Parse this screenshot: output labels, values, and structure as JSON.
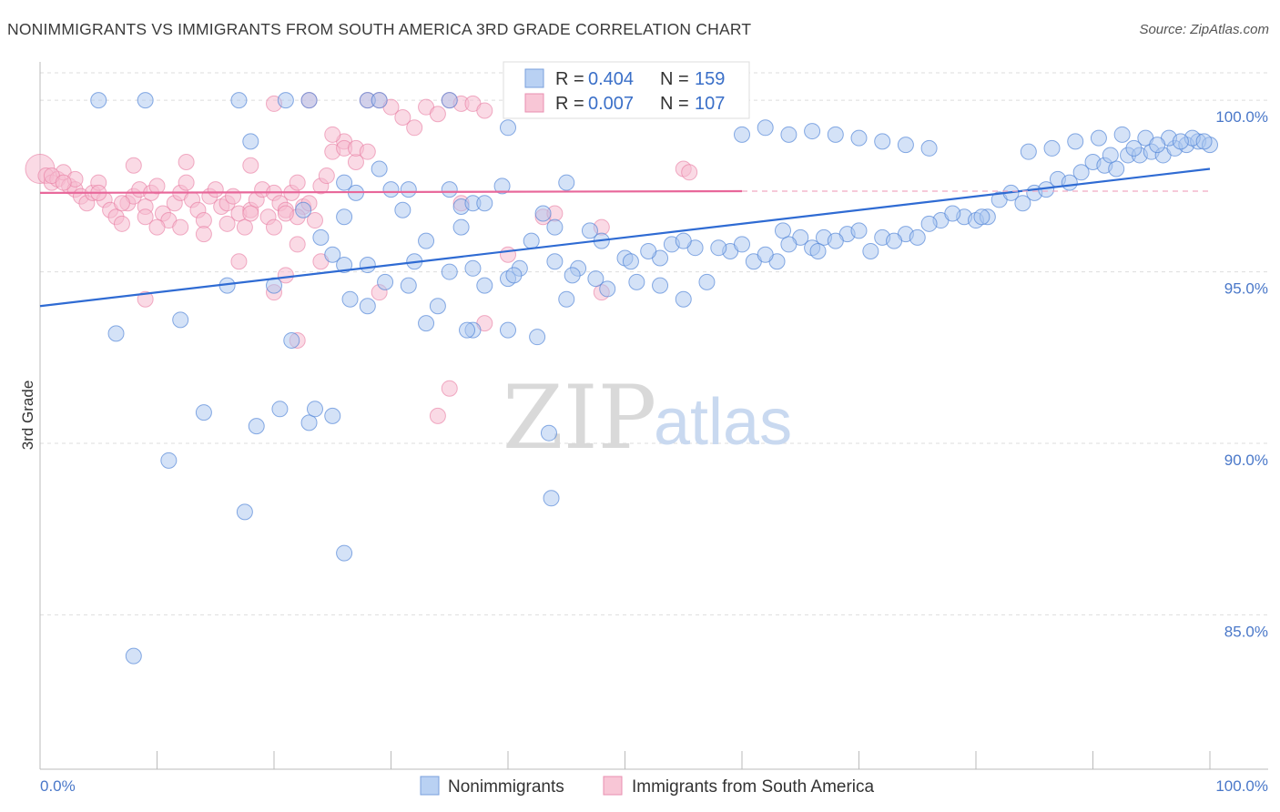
{
  "title": "NONIMMIGRANTS VS IMMIGRANTS FROM SOUTH AMERICA 3RD GRADE CORRELATION CHART",
  "source": "Source: ZipAtlas.com",
  "watermark": {
    "zip": "ZIP",
    "atlas": "atlas"
  },
  "colors": {
    "blue": "#4a7fd6",
    "blue_fill": "#aac6f0",
    "pink": "#e87aa0",
    "pink_fill": "#f6bcd0",
    "grid": "#dddddd",
    "tick_text": "#4a78c9"
  },
  "legend": {
    "r_label": "R =",
    "n_label": "N =",
    "blue": {
      "r": "0.404",
      "n": "159"
    },
    "pink": {
      "r": "0.007",
      "n": "107"
    }
  },
  "chart_data": {
    "type": "scatter",
    "title": "NONIMMIGRANTS VS IMMIGRANTS FROM SOUTH AMERICA 3RD GRADE CORRELATION CHART",
    "xlabel": "",
    "ylabel": "3rd Grade",
    "xlim": [
      0,
      100
    ],
    "ylim": [
      80.5,
      100.8
    ],
    "x_tick_labels": [
      "0.0%",
      "100.0%"
    ],
    "y_ticks": [
      85,
      90,
      95,
      100
    ],
    "y_tick_labels": [
      "85.0%",
      "90.0%",
      "95.0%",
      "100.0%"
    ],
    "grid": "horizontal dashed",
    "legend_position": "top-center",
    "series": [
      {
        "name": "Nonimmigrants",
        "color": "#4a7fd6",
        "r": 0.404,
        "n": 159,
        "trend": {
          "x": [
            0,
            100
          ],
          "y": [
            94.0,
            98.0
          ]
        },
        "points": [
          [
            5,
            100
          ],
          [
            9,
            100
          ],
          [
            17,
            100
          ],
          [
            21,
            100
          ],
          [
            23,
            100
          ],
          [
            28,
            100
          ],
          [
            29,
            100
          ],
          [
            35,
            100
          ],
          [
            40,
            99.2
          ],
          [
            18,
            98.8
          ],
          [
            29,
            98
          ],
          [
            30,
            97.4
          ],
          [
            31.5,
            97.4
          ],
          [
            27,
            97.3
          ],
          [
            35,
            97.4
          ],
          [
            39.5,
            97.5
          ],
          [
            45,
            97.6
          ],
          [
            26,
            97.6
          ],
          [
            22.5,
            96.8
          ],
          [
            24,
            96.0
          ],
          [
            26,
            96.6
          ],
          [
            31,
            96.8
          ],
          [
            36,
            96.9
          ],
          [
            37,
            97.0
          ],
          [
            38,
            97.0
          ],
          [
            43,
            96.7
          ],
          [
            44,
            96.3
          ],
          [
            47,
            96.2
          ],
          [
            33,
            95.9
          ],
          [
            36,
            96.3
          ],
          [
            42,
            95.9
          ],
          [
            25,
            95.5
          ],
          [
            26,
            95.2
          ],
          [
            28,
            95.2
          ],
          [
            32,
            95.3
          ],
          [
            35,
            95.0
          ],
          [
            37,
            95.1
          ],
          [
            41,
            95.1
          ],
          [
            44,
            95.3
          ],
          [
            46,
            95.1
          ],
          [
            48,
            95.9
          ],
          [
            50,
            95.4
          ],
          [
            53,
            95.4
          ],
          [
            56,
            95.7
          ],
          [
            59,
            95.6
          ],
          [
            61,
            95.3
          ],
          [
            63,
            95.3
          ],
          [
            38,
            94.6
          ],
          [
            40,
            94.8
          ],
          [
            40.5,
            94.9
          ],
          [
            45.5,
            94.9
          ],
          [
            47.5,
            94.8
          ],
          [
            50.5,
            95.3
          ],
          [
            52,
            95.6
          ],
          [
            54,
            95.8
          ],
          [
            55,
            95.9
          ],
          [
            58,
            95.7
          ],
          [
            60,
            95.8
          ],
          [
            63.5,
            96.2
          ],
          [
            65,
            96.0
          ],
          [
            66,
            95.7
          ],
          [
            64,
            95.8
          ],
          [
            67,
            96.0
          ],
          [
            69,
            96.1
          ],
          [
            72,
            96.0
          ],
          [
            74,
            96.1
          ],
          [
            71,
            95.6
          ],
          [
            73,
            95.9
          ],
          [
            75,
            96.0
          ],
          [
            77,
            96.5
          ],
          [
            79,
            96.6
          ],
          [
            80,
            96.5
          ],
          [
            81,
            96.6
          ],
          [
            78,
            96.7
          ],
          [
            82,
            97.1
          ],
          [
            83,
            97.3
          ],
          [
            85,
            97.3
          ],
          [
            86,
            97.4
          ],
          [
            87,
            97.7
          ],
          [
            88,
            97.6
          ],
          [
            89,
            97.9
          ],
          [
            90,
            98.2
          ],
          [
            91,
            98.1
          ],
          [
            92,
            98.0
          ],
          [
            93,
            98.4
          ],
          [
            94,
            98.4
          ],
          [
            95,
            98.5
          ],
          [
            96,
            98.4
          ],
          [
            97,
            98.6
          ],
          [
            98,
            98.7
          ],
          [
            99,
            98.8
          ],
          [
            100,
            98.7
          ],
          [
            84,
            97.0
          ],
          [
            80.5,
            96.6
          ],
          [
            76,
            96.4
          ],
          [
            70,
            96.2
          ],
          [
            68,
            95.9
          ],
          [
            66.5,
            95.6
          ],
          [
            62,
            95.5
          ],
          [
            57,
            94.7
          ],
          [
            55,
            94.2
          ],
          [
            53,
            94.6
          ],
          [
            51,
            94.7
          ],
          [
            48.5,
            94.5
          ],
          [
            45,
            94.2
          ],
          [
            40,
            93.3
          ],
          [
            37,
            93.3
          ],
          [
            36.5,
            93.3
          ],
          [
            42.5,
            93.1
          ],
          [
            33,
            93.5
          ],
          [
            28,
            94.0
          ],
          [
            26.5,
            94.2
          ],
          [
            34,
            94.0
          ],
          [
            20,
            94.6
          ],
          [
            16,
            94.6
          ],
          [
            12,
            93.6
          ],
          [
            6.5,
            93.2
          ],
          [
            21.5,
            93.0
          ],
          [
            29.5,
            94.7
          ],
          [
            31.5,
            94.6
          ],
          [
            11,
            89.5
          ],
          [
            17.5,
            88.0
          ],
          [
            18.5,
            90.5
          ],
          [
            23,
            90.6
          ],
          [
            25,
            90.8
          ],
          [
            26,
            86.8
          ],
          [
            43.5,
            90.3
          ],
          [
            43.7,
            88.4
          ],
          [
            8,
            83.8
          ],
          [
            14,
            90.9
          ],
          [
            20.5,
            91.0
          ],
          [
            23.5,
            91.0
          ],
          [
            60,
            99.0
          ],
          [
            62,
            99.2
          ],
          [
            64,
            99.0
          ],
          [
            66,
            99.1
          ],
          [
            68,
            99.0
          ],
          [
            70,
            98.9
          ],
          [
            72,
            98.8
          ],
          [
            74,
            98.7
          ],
          [
            76,
            98.6
          ],
          [
            84.5,
            98.5
          ],
          [
            86.5,
            98.6
          ],
          [
            88.5,
            98.8
          ],
          [
            90.5,
            98.9
          ],
          [
            92.5,
            99.0
          ],
          [
            94.5,
            98.9
          ],
          [
            96.5,
            98.9
          ],
          [
            98.5,
            98.9
          ],
          [
            99.5,
            98.8
          ],
          [
            97.5,
            98.8
          ],
          [
            95.5,
            98.7
          ],
          [
            93.5,
            98.6
          ],
          [
            91.5,
            98.4
          ]
        ]
      },
      {
        "name": "Immigrants from South America",
        "color": "#e87aa0",
        "r": 0.007,
        "n": 107,
        "trend": {
          "x": [
            0,
            60
          ],
          "y": [
            97.3,
            97.35
          ]
        },
        "trend_dashed": {
          "x": [
            60,
            100
          ],
          "y": [
            97.35,
            97.35
          ]
        },
        "points": [
          [
            0,
            98
          ],
          [
            0.5,
            97.8
          ],
          [
            1,
            97.6
          ],
          [
            1.5,
            97.7
          ],
          [
            2,
            97.9
          ],
          [
            2.5,
            97.5
          ],
          [
            3,
            97.4
          ],
          [
            3.5,
            97.2
          ],
          [
            4,
            97.0
          ],
          [
            4.5,
            97.3
          ],
          [
            5,
            97.6
          ],
          [
            5.5,
            97.1
          ],
          [
            6,
            96.8
          ],
          [
            6.5,
            96.6
          ],
          [
            7,
            96.4
          ],
          [
            7.5,
            97.0
          ],
          [
            8,
            97.2
          ],
          [
            8.5,
            97.4
          ],
          [
            9,
            96.9
          ],
          [
            9.5,
            97.3
          ],
          [
            10,
            97.5
          ],
          [
            10.5,
            96.7
          ],
          [
            11,
            96.5
          ],
          [
            11.5,
            97.0
          ],
          [
            12,
            97.3
          ],
          [
            12.5,
            97.6
          ],
          [
            13,
            97.1
          ],
          [
            13.5,
            96.8
          ],
          [
            14,
            96.5
          ],
          [
            14.5,
            97.2
          ],
          [
            15,
            97.4
          ],
          [
            15.5,
            96.9
          ],
          [
            16,
            97.0
          ],
          [
            16.5,
            97.2
          ],
          [
            17,
            96.7
          ],
          [
            17.5,
            96.3
          ],
          [
            18,
            96.8
          ],
          [
            18.5,
            97.1
          ],
          [
            19,
            97.4
          ],
          [
            19.5,
            96.6
          ],
          [
            20,
            97.3
          ],
          [
            20.5,
            97.0
          ],
          [
            21,
            96.8
          ],
          [
            21.5,
            97.3
          ],
          [
            22,
            97.6
          ],
          [
            22.5,
            96.9
          ],
          [
            23,
            97.0
          ],
          [
            23.5,
            96.5
          ],
          [
            24,
            97.5
          ],
          [
            24.5,
            97.8
          ],
          [
            25,
            98.5
          ],
          [
            26,
            98.8
          ],
          [
            27,
            98.2
          ],
          [
            28,
            100
          ],
          [
            29,
            100
          ],
          [
            30,
            99.8
          ],
          [
            31,
            99.5
          ],
          [
            32,
            99.2
          ],
          [
            33,
            99.8
          ],
          [
            34,
            99.6
          ],
          [
            35,
            100
          ],
          [
            36,
            99.9
          ],
          [
            37,
            99.9
          ],
          [
            38,
            99.7
          ],
          [
            20,
            99.9
          ],
          [
            23,
            100
          ],
          [
            25,
            99.0
          ],
          [
            26,
            98.6
          ],
          [
            27,
            98.6
          ],
          [
            18,
            98.1
          ],
          [
            12.5,
            98.2
          ],
          [
            8,
            98.1
          ],
          [
            3,
            97.7
          ],
          [
            1,
            97.8
          ],
          [
            2,
            97.6
          ],
          [
            5,
            97.3
          ],
          [
            7,
            97.0
          ],
          [
            9,
            96.6
          ],
          [
            10,
            96.3
          ],
          [
            12,
            96.3
          ],
          [
            14,
            96.1
          ],
          [
            16,
            96.4
          ],
          [
            18,
            96.7
          ],
          [
            20,
            96.3
          ],
          [
            22,
            96.6
          ],
          [
            21,
            96.7
          ],
          [
            22,
            95.8
          ],
          [
            17,
            95.3
          ],
          [
            24,
            95.3
          ],
          [
            21,
            94.9
          ],
          [
            20,
            94.4
          ],
          [
            29,
            94.4
          ],
          [
            9,
            94.2
          ],
          [
            22,
            93.0
          ],
          [
            38,
            93.5
          ],
          [
            35,
            91.6
          ],
          [
            34,
            90.8
          ],
          [
            55,
            98.0
          ],
          [
            55.5,
            97.9
          ],
          [
            48,
            96.3
          ],
          [
            43,
            96.6
          ],
          [
            44,
            96.7
          ],
          [
            40,
            95.5
          ],
          [
            48,
            94.4
          ],
          [
            36,
            97.0
          ],
          [
            28,
            98.5
          ]
        ]
      }
    ]
  },
  "x_axis": {
    "left_label": "0.0%",
    "right_label": "100.0%"
  },
  "bottom_legend": {
    "blue_label": "Nonimmigrants",
    "pink_label": "Immigrants from South America"
  }
}
